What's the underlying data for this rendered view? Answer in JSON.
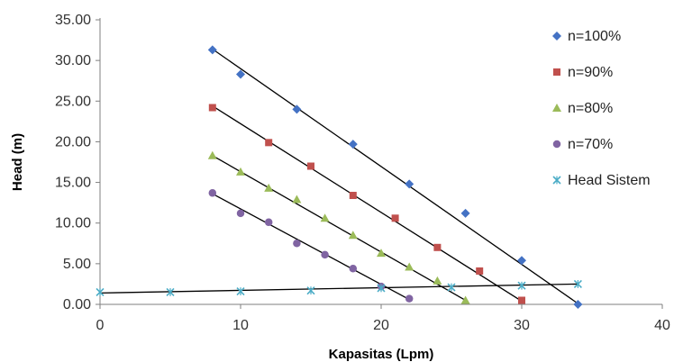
{
  "chart_data": {
    "type": "scatter",
    "xlabel": "Kapasitas (Lpm)",
    "ylabel": "Head (m)",
    "xlim": [
      0,
      40
    ],
    "ylim": [
      0,
      35
    ],
    "x_ticks": [
      "0",
      "10",
      "20",
      "30",
      "40"
    ],
    "y_ticks": [
      "0.00",
      "5.00",
      "10.00",
      "15.00",
      "20.00",
      "25.00",
      "30.00",
      "35.00"
    ],
    "grid": false,
    "legend_position": "right",
    "series": [
      {
        "name": "n=100%",
        "marker": "diamond",
        "color": "#4472C4",
        "points": [
          [
            8,
            31.3
          ],
          [
            10,
            28.3
          ],
          [
            14,
            24.0
          ],
          [
            18,
            19.7
          ],
          [
            22,
            14.8
          ],
          [
            26,
            11.2
          ],
          [
            30,
            5.4
          ],
          [
            34,
            0.0
          ]
        ],
        "trendline": [
          [
            8,
            31.4
          ],
          [
            34,
            0.1
          ]
        ]
      },
      {
        "name": "n=90%",
        "marker": "square",
        "color": "#C0504D",
        "points": [
          [
            8,
            24.2
          ],
          [
            12,
            19.9
          ],
          [
            15,
            17.0
          ],
          [
            18,
            13.4
          ],
          [
            21,
            10.6
          ],
          [
            24,
            7.0
          ],
          [
            27,
            4.1
          ],
          [
            30,
            0.5
          ]
        ],
        "trendline": [
          [
            8,
            24.4
          ],
          [
            30,
            0.4
          ]
        ]
      },
      {
        "name": "n=80%",
        "marker": "triangle",
        "color": "#9BBB59",
        "points": [
          [
            8,
            18.3
          ],
          [
            10,
            16.3
          ],
          [
            12,
            14.3
          ],
          [
            14,
            12.9
          ],
          [
            16,
            10.6
          ],
          [
            18,
            8.5
          ],
          [
            20,
            6.3
          ],
          [
            22,
            4.6
          ],
          [
            24,
            2.9
          ],
          [
            26,
            0.5
          ]
        ],
        "trendline": [
          [
            8,
            18.3
          ],
          [
            26,
            0.5
          ]
        ]
      },
      {
        "name": "n=70%",
        "marker": "circle",
        "color": "#8064A2",
        "points": [
          [
            8,
            13.7
          ],
          [
            10,
            11.2
          ],
          [
            12,
            10.1
          ],
          [
            14,
            7.5
          ],
          [
            16,
            6.1
          ],
          [
            18,
            4.4
          ],
          [
            20,
            2.2
          ],
          [
            22,
            0.7
          ]
        ],
        "trendline": [
          [
            8,
            13.6
          ],
          [
            22,
            0.6
          ]
        ]
      },
      {
        "name": "Head Sistem",
        "marker": "x",
        "color": "#4BACC6",
        "points": [
          [
            0,
            1.5
          ],
          [
            5,
            1.5
          ],
          [
            10,
            1.6
          ],
          [
            15,
            1.7
          ],
          [
            20,
            2.0
          ],
          [
            25,
            2.1
          ],
          [
            30,
            2.3
          ],
          [
            34,
            2.5
          ]
        ],
        "trendline": [
          [
            0,
            1.4
          ],
          [
            34,
            2.5
          ]
        ]
      }
    ]
  }
}
